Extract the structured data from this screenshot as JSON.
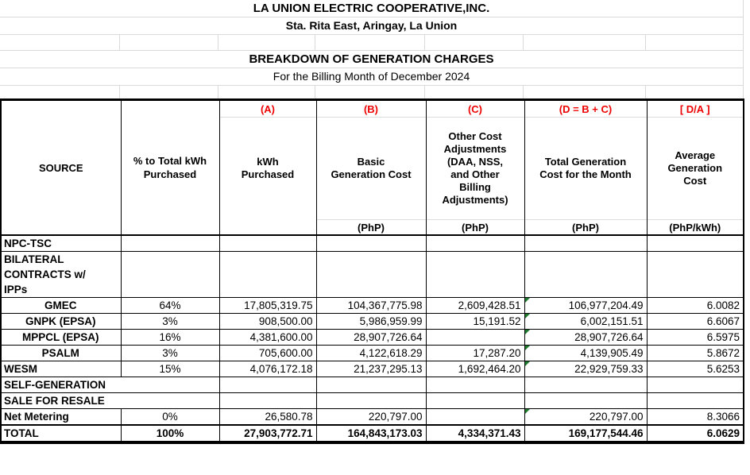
{
  "titles": {
    "company": "LA UNION ELECTRIC COOPERATIVE,INC.",
    "address": "Sta. Rita East, Aringay, La Union",
    "report": "BREAKDOWN OF GENERATION CHARGES",
    "period": "For the Billing Month of December 2024"
  },
  "table": {
    "columns": [
      {
        "id": "source",
        "letter": "",
        "label": "SOURCE",
        "unit": ""
      },
      {
        "id": "pct",
        "letter": "",
        "label": "% to Total kWh\nPurchased",
        "unit": ""
      },
      {
        "id": "kwh",
        "letter": "(A)",
        "label": "kWh\nPurchased",
        "unit": ""
      },
      {
        "id": "basic",
        "letter": "(B)",
        "label": "Basic\nGeneration Cost",
        "unit": "(PhP)"
      },
      {
        "id": "other",
        "letter": "(C)",
        "label": "Other Cost\nAdjustments\n(DAA, NSS,\nand Other\nBilling\nAdjustments)",
        "unit": "(PhP)"
      },
      {
        "id": "total",
        "letter": "(D = B + C)",
        "label": "Total Generation\nCost for the Month",
        "unit": "(PhP)"
      },
      {
        "id": "avg",
        "letter": "[ D/A ]",
        "label": "Average\nGeneration\nCost",
        "unit": "(PhP/kWh)"
      }
    ],
    "rows": [
      {
        "source": "NPC-TSC",
        "align": "left",
        "merged": false,
        "flag": false,
        "total_row": false,
        "pct": "",
        "kwh": "",
        "basic": "",
        "other": "",
        "total": "",
        "avg": ""
      },
      {
        "source": "BILATERAL\nCONTRACTS w/\nIPPs",
        "align": "left",
        "merged": false,
        "flag": false,
        "total_row": false,
        "pct": "",
        "kwh": "",
        "basic": "",
        "other": "",
        "total": "",
        "avg": ""
      },
      {
        "source": "GMEC",
        "align": "center",
        "merged": false,
        "flag": true,
        "total_row": false,
        "pct": "64%",
        "kwh": "17,805,319.75",
        "basic": "104,367,775.98",
        "other": "2,609,428.51",
        "total": "106,977,204.49",
        "avg": "6.0082"
      },
      {
        "source": "GNPK (EPSA)",
        "align": "center",
        "merged": false,
        "flag": true,
        "total_row": false,
        "pct": "3%",
        "kwh": "908,500.00",
        "basic": "5,986,959.99",
        "other": "15,191.52",
        "total": "6,002,151.51",
        "avg": "6.6067"
      },
      {
        "source": "MPPCL (EPSA)",
        "align": "center",
        "merged": false,
        "flag": true,
        "total_row": false,
        "pct": "16%",
        "kwh": "4,381,600.00",
        "basic": "28,907,726.64",
        "other": "",
        "total": "28,907,726.64",
        "avg": "6.5975"
      },
      {
        "source": "PSALM",
        "align": "center",
        "merged": false,
        "flag": true,
        "total_row": false,
        "pct": "3%",
        "kwh": "705,600.00",
        "basic": "4,122,618.29",
        "other": "17,287.20",
        "total": "4,139,905.49",
        "avg": "5.8672"
      },
      {
        "source": "WESM",
        "align": "left",
        "merged": false,
        "flag": true,
        "total_row": false,
        "pct": "15%",
        "kwh": "4,076,172.18",
        "basic": "21,237,295.13",
        "other": "1,692,464.20",
        "total": "22,929,759.33",
        "avg": "5.6253"
      },
      {
        "source": "SELF-GENERATION",
        "align": "left",
        "merged": true,
        "flag": false,
        "total_row": false,
        "pct": "",
        "kwh": "",
        "basic": "",
        "other": "",
        "total": "",
        "avg": ""
      },
      {
        "source": "SALE FOR RESALE",
        "align": "left",
        "merged": true,
        "flag": false,
        "total_row": false,
        "pct": "",
        "kwh": "",
        "basic": "",
        "other": "",
        "total": "",
        "avg": ""
      },
      {
        "source": "Net Metering",
        "align": "left",
        "merged": false,
        "flag": true,
        "total_row": false,
        "pct": "0%",
        "kwh": "26,580.78",
        "basic": "220,797.00",
        "other": "",
        "total": "220,797.00",
        "avg": "8.3066"
      },
      {
        "source": "TOTAL",
        "align": "left",
        "merged": false,
        "flag": false,
        "total_row": true,
        "pct": "100%",
        "kwh": "27,903,772.71",
        "basic": "164,843,173.03",
        "other": "4,334,371.43",
        "total": "169,177,544.46",
        "avg": "6.0629"
      }
    ]
  },
  "colors": {
    "accent_red": "#ee0000",
    "flag_green": "#1e7b2e",
    "gridline_gray": "#d9d9d9"
  }
}
